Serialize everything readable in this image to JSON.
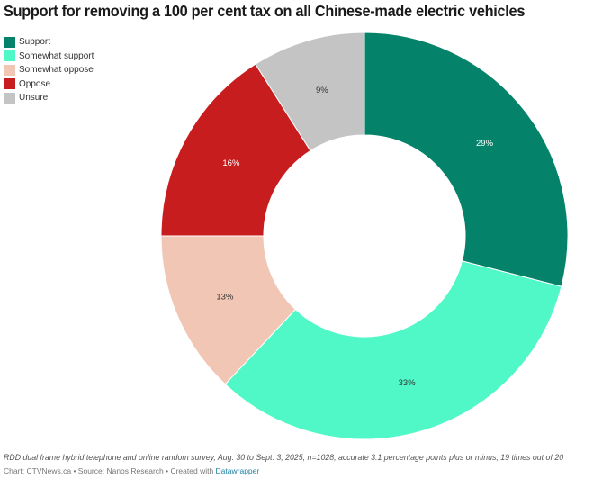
{
  "chart_data": {
    "type": "pie",
    "variant": "donut",
    "title": "Support for removing a 100 per cent tax on all Chinese-made electric vehicles",
    "start": "top",
    "direction": "clockwise",
    "legend_placement": "top-left",
    "categories": [
      "Support",
      "Somewhat support",
      "Somewhat oppose",
      "Oppose",
      "Unsure"
    ],
    "values": [
      29,
      33,
      13,
      16,
      9
    ],
    "labels": [
      "29%",
      "33%",
      "13%",
      "16%",
      "9%"
    ],
    "colors": [
      "#05836a",
      "#4ff8c6",
      "#f2c6b4",
      "#c81d1e",
      "#c4c4c4"
    ],
    "label_colors": [
      "#ffffff",
      "#333333",
      "#333333",
      "#ffffff",
      "#333333"
    ],
    "unit": "%"
  },
  "footer": {
    "notes": "RDD dual frame hybrid telephone and online random survey, Aug. 30 to Sept. 3, 2025, n=1028, accurate 3.1 percentage points plus or minus, 19 times out of 20",
    "byline_prefix": "Chart: CTVNews.ca • Source: Nanos Research • Created with ",
    "byline_link": "Datawrapper"
  }
}
